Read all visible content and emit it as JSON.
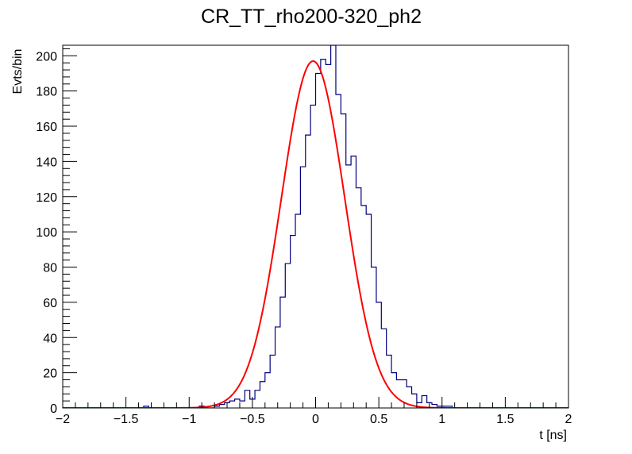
{
  "chart_data": {
    "type": "histogram",
    "title": "CR_TT_rho200-320_ph2",
    "xlabel": "t [ns]",
    "ylabel": "Evts/bin",
    "xlim": [
      -2,
      2
    ],
    "ylim": [
      0,
      206
    ],
    "grid": false,
    "legend": "none",
    "x_ticks": [
      -2,
      -1.5,
      -1,
      -0.5,
      0,
      0.5,
      1,
      1.5,
      2
    ],
    "x_tick_labels": [
      "−2",
      "−1.5",
      "−1",
      "−0.5",
      "0",
      "0.5",
      "1",
      "1.5",
      "2"
    ],
    "y_ticks": [
      0,
      20,
      40,
      60,
      80,
      100,
      120,
      140,
      160,
      180,
      200
    ],
    "y_tick_labels": [
      "0",
      "20",
      "40",
      "60",
      "80",
      "100",
      "120",
      "140",
      "160",
      "180",
      "200"
    ],
    "bin_width": 0.04,
    "bin_edges_start": -2.0,
    "series": [
      {
        "kind": "histogram",
        "color": "#000080",
        "values": [
          0,
          0,
          0,
          0,
          0,
          0,
          0,
          0,
          0,
          0,
          0,
          0,
          0,
          0,
          0,
          0,
          1,
          0,
          0,
          0,
          0,
          0,
          0,
          0,
          0,
          0,
          0,
          1,
          0,
          0,
          1,
          2,
          3,
          4,
          5,
          4,
          10,
          5,
          10,
          15,
          20,
          30,
          46,
          63,
          82,
          98,
          110,
          137,
          155,
          172,
          190,
          198,
          195,
          206,
          178,
          167,
          138,
          143,
          125,
          115,
          110,
          80,
          60,
          45,
          30,
          20,
          16,
          16,
          12,
          8,
          3,
          7,
          3,
          2,
          1,
          1,
          1,
          0,
          0,
          0,
          0,
          0,
          0,
          0,
          0,
          0,
          0,
          0,
          0,
          0,
          0,
          0,
          0,
          0,
          0,
          0,
          0,
          0,
          0,
          0
        ],
        "clipped_bin_center": 0.14
      },
      {
        "kind": "fit",
        "color": "#ff0000",
        "function": "gaussian",
        "amplitude": 197,
        "mean": -0.02,
        "sigma": 0.25
      }
    ]
  }
}
